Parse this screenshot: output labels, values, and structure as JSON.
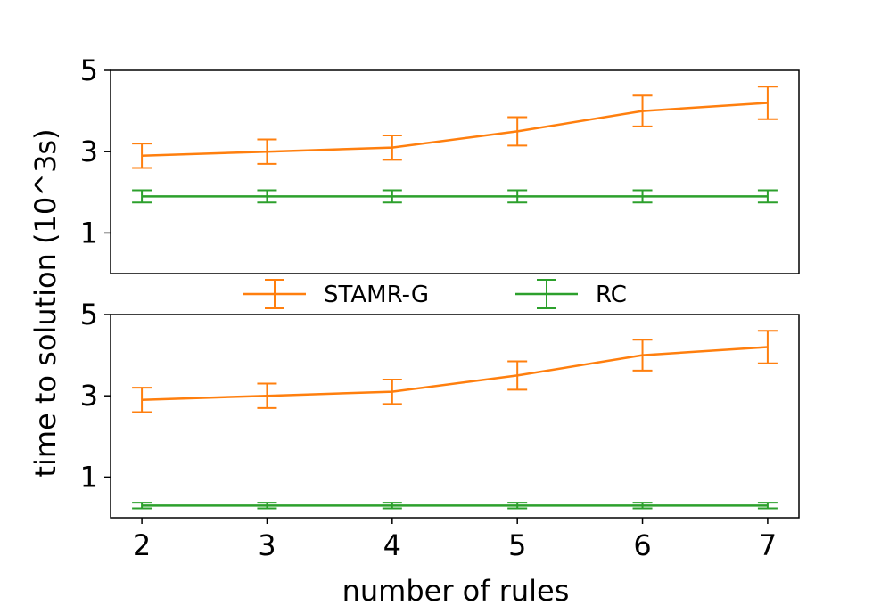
{
  "chart_data": [
    {
      "type": "line",
      "x": [
        2,
        3,
        4,
        5,
        6,
        7
      ],
      "ylim": [
        0,
        5
      ],
      "yticks": [
        1,
        3,
        5
      ],
      "series": [
        {
          "name": "STAMR-G",
          "color": "#ff7f0e",
          "values": [
            2.9,
            3.0,
            3.1,
            3.5,
            4.0,
            4.2
          ],
          "errors": [
            0.3,
            0.3,
            0.3,
            0.35,
            0.38,
            0.4
          ]
        },
        {
          "name": "RC",
          "color": "#2ca02c",
          "values": [
            1.9,
            1.9,
            1.9,
            1.9,
            1.9,
            1.9
          ],
          "errors": [
            0.15,
            0.15,
            0.15,
            0.15,
            0.15,
            0.15
          ]
        }
      ]
    },
    {
      "type": "line",
      "x": [
        2,
        3,
        4,
        5,
        6,
        7
      ],
      "xticks": [
        2,
        3,
        4,
        5,
        6,
        7
      ],
      "ylim": [
        0,
        5
      ],
      "yticks": [
        1,
        3,
        5
      ],
      "series": [
        {
          "name": "STAMR-G",
          "color": "#ff7f0e",
          "values": [
            2.9,
            3.0,
            3.1,
            3.5,
            4.0,
            4.2
          ],
          "errors": [
            0.3,
            0.3,
            0.3,
            0.35,
            0.38,
            0.4
          ]
        },
        {
          "name": "RC",
          "color": "#2ca02c",
          "values": [
            0.3,
            0.3,
            0.3,
            0.3,
            0.3,
            0.3
          ],
          "errors": [
            0.07,
            0.07,
            0.07,
            0.07,
            0.07,
            0.07
          ]
        }
      ]
    }
  ],
  "ylabel": "time to solution (10^3s)",
  "xlabel": "number of rules",
  "legend": {
    "placement": "between-panels",
    "entries": [
      {
        "label": "STAMR-G",
        "color": "#ff7f0e"
      },
      {
        "label": "RC",
        "color": "#2ca02c"
      }
    ]
  }
}
